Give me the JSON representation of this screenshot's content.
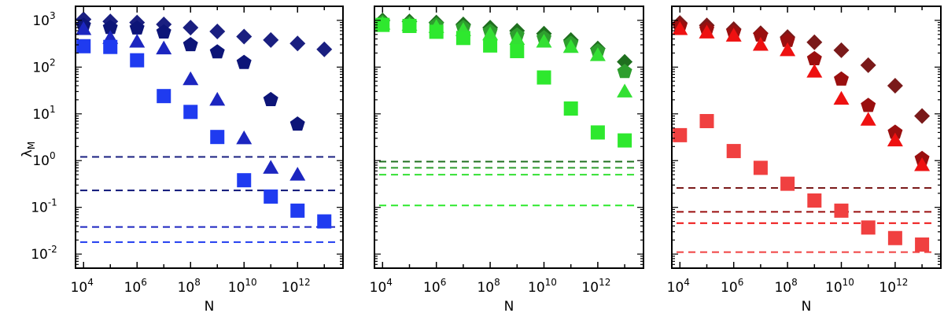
{
  "chart_data": [
    {
      "type": "scatter",
      "xlabel": "N",
      "ylabel": "λ",
      "ylabel_sub": "M",
      "xscale": "log",
      "yscale": "log",
      "xlim": [
        5000,
        50000000000000
      ],
      "ylim": [
        0.005,
        2000
      ],
      "xticks": [
        10000,
        1000000,
        100000000,
        10000000000,
        1000000000000
      ],
      "xtick_labels": [
        {
          "base": "10",
          "exp": "4"
        },
        {
          "base": "10",
          "exp": "6"
        },
        {
          "base": "10",
          "exp": "8"
        },
        {
          "base": "10",
          "exp": "10"
        },
        {
          "base": "10",
          "exp": "12"
        }
      ],
      "yticks": [
        0.01,
        0.1,
        1,
        10,
        100,
        1000
      ],
      "ytick_labels": [
        {
          "base": "10",
          "exp": "-2"
        },
        {
          "base": "10",
          "exp": "-1"
        },
        {
          "base": "10",
          "exp": "0"
        },
        {
          "base": "10",
          "exp": "1"
        },
        {
          "base": "10",
          "exp": "2"
        },
        {
          "base": "10",
          "exp": "3"
        }
      ],
      "x": [
        10000,
        100000,
        1000000,
        10000000,
        100000000,
        1000000000,
        10000000000,
        100000000000,
        1000000000000,
        10000000000000
      ],
      "series": [
        {
          "marker": "diamond",
          "color": "#1a1f80",
          "values": [
            1050,
            950,
            900,
            820,
            700,
            580,
            450,
            380,
            320,
            240
          ]
        },
        {
          "marker": "pentagon",
          "color": "#0d1578",
          "values": [
            780,
            700,
            680,
            560,
            300,
            210,
            125,
            20,
            6,
            null
          ]
        },
        {
          "marker": "triangle",
          "color": "#1c26c0",
          "values": [
            650,
            420,
            350,
            250,
            55,
            20,
            3,
            0.7,
            0.5,
            null
          ]
        },
        {
          "marker": "square",
          "color": "#1f3bf0",
          "values": [
            280,
            270,
            140,
            24,
            11,
            3.2,
            0.38,
            0.17,
            0.085,
            0.05
          ]
        }
      ],
      "hlines": [
        {
          "y": 1.2,
          "color": "#1a1f80"
        },
        {
          "y": 0.23,
          "color": "#0d1578"
        },
        {
          "y": 0.038,
          "color": "#1c26c0"
        },
        {
          "y": 0.018,
          "color": "#1f3bf0"
        }
      ]
    },
    {
      "type": "scatter",
      "xlabel": "N",
      "xscale": "log",
      "yscale": "log",
      "xlim": [
        5000,
        50000000000000
      ],
      "ylim": [
        0.005,
        2000
      ],
      "xticks": [
        10000,
        1000000,
        100000000,
        10000000000,
        1000000000000
      ],
      "xtick_labels": [
        {
          "base": "10",
          "exp": "4"
        },
        {
          "base": "10",
          "exp": "6"
        },
        {
          "base": "10",
          "exp": "8"
        },
        {
          "base": "10",
          "exp": "10"
        },
        {
          "base": "10",
          "exp": "12"
        }
      ],
      "x": [
        10000,
        100000,
        1000000,
        10000000,
        100000000,
        1000000000,
        10000000000,
        100000000000,
        1000000000000,
        10000000000000
      ],
      "series": [
        {
          "marker": "diamond",
          "color": "#1f6f1f",
          "values": [
            1000,
            950,
            900,
            820,
            700,
            600,
            520,
            380,
            250,
            130
          ]
        },
        {
          "marker": "pentagon",
          "color": "#2e9e2e",
          "values": [
            900,
            850,
            800,
            700,
            580,
            480,
            420,
            320,
            220,
            80
          ]
        },
        {
          "marker": "triangle",
          "color": "#33e033",
          "values": [
            850,
            800,
            720,
            620,
            500,
            400,
            350,
            270,
            180,
            30
          ]
        },
        {
          "marker": "square",
          "color": "#2ee82e",
          "values": [
            800,
            760,
            570,
            420,
            290,
            220,
            60,
            13,
            4,
            2.7
          ]
        }
      ],
      "hlines": [
        {
          "y": 0.95,
          "color": "#1f6f1f"
        },
        {
          "y": 0.7,
          "color": "#2e9e2e"
        },
        {
          "y": 0.5,
          "color": "#33e033"
        },
        {
          "y": 0.11,
          "color": "#2ee82e"
        }
      ]
    },
    {
      "type": "scatter",
      "xlabel": "N",
      "xscale": "log",
      "yscale": "log",
      "xlim": [
        5000,
        50000000000000
      ],
      "ylim": [
        0.005,
        2000
      ],
      "xticks": [
        10000,
        1000000,
        100000000,
        10000000000,
        1000000000000
      ],
      "xtick_labels": [
        {
          "base": "10",
          "exp": "4"
        },
        {
          "base": "10",
          "exp": "6"
        },
        {
          "base": "10",
          "exp": "8"
        },
        {
          "base": "10",
          "exp": "10"
        },
        {
          "base": "10",
          "exp": "12"
        }
      ],
      "x": [
        10000,
        100000,
        1000000,
        10000000,
        100000000,
        1000000000,
        10000000000,
        100000000000,
        1000000000000,
        10000000000000
      ],
      "series": [
        {
          "marker": "diamond",
          "color": "#7a1a1a",
          "values": [
            880,
            780,
            650,
            530,
            440,
            340,
            230,
            110,
            40,
            9
          ]
        },
        {
          "marker": "pentagon",
          "color": "#9a0f0f",
          "values": [
            750,
            640,
            560,
            480,
            370,
            150,
            55,
            15,
            4,
            1.1
          ]
        },
        {
          "marker": "triangle",
          "color": "#ee1111",
          "values": [
            650,
            550,
            470,
            300,
            230,
            80,
            21,
            7.5,
            2.7,
            0.8
          ]
        },
        {
          "marker": "square",
          "color": "#f04040",
          "values": [
            3.5,
            7,
            1.6,
            0.7,
            0.32,
            0.14,
            0.085,
            0.037,
            0.022,
            0.016
          ]
        }
      ],
      "hlines": [
        {
          "y": 0.26,
          "color": "#7a1a1a"
        },
        {
          "y": 0.08,
          "color": "#9a0f0f"
        },
        {
          "y": 0.046,
          "color": "#ee1111"
        },
        {
          "y": 0.011,
          "color": "#f04040"
        }
      ]
    }
  ]
}
